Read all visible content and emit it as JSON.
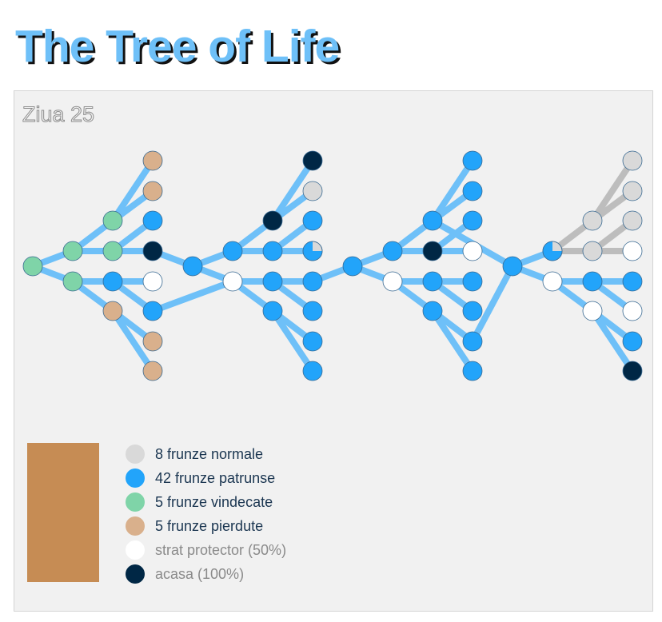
{
  "title": "The Tree of Life",
  "day_label": "Ziua 25",
  "colors": {
    "normal": "#d9d9d9",
    "penetrated": "#22a4fa",
    "healed": "#7fd4a8",
    "lost": "#d9b08c",
    "protective": "#ffffff",
    "home": "#002745",
    "branch_blue": "#6ec0f8",
    "branch_grey": "#bdbdbd",
    "soil": "#c68c54",
    "node_stroke": "#3a6a92"
  },
  "legend": [
    {
      "key": "normal",
      "label": "8 frunze normale"
    },
    {
      "key": "penetrated",
      "label": "42 frunze patrunse"
    },
    {
      "key": "healed",
      "label": "5 frunze vindecate"
    },
    {
      "key": "lost",
      "label": "5 frunze pierdute"
    },
    {
      "key": "protective",
      "label": "strat protector (50%)"
    },
    {
      "key": "home",
      "label": "acasa (100%)"
    }
  ]
}
